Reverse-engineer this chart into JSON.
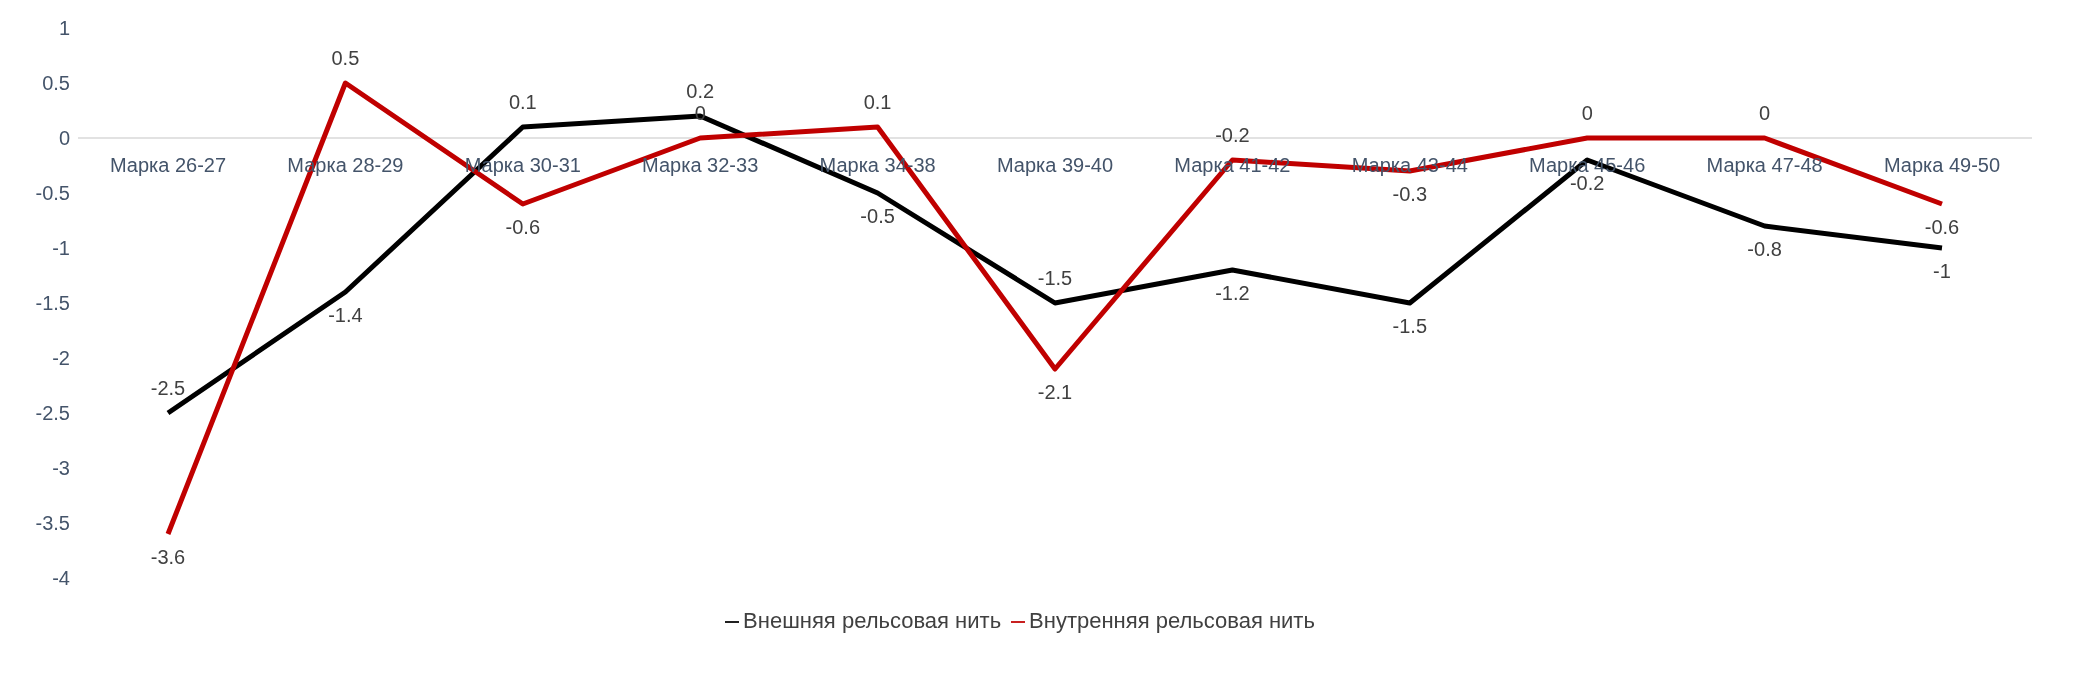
{
  "chart_data": {
    "type": "line",
    "categories": [
      "Марка 26-27",
      "Марка 28-29",
      "Марка 30-31",
      "Марка 32-33",
      "Марка 34-38",
      "Марка 39-40",
      "Марка 41-42",
      "Марка 43-44",
      "Марка 45-46",
      "Марка 47-48",
      "Марка 49-50"
    ],
    "series": [
      {
        "name": "Внешняя рельсовая нить",
        "color": "#000000",
        "values": [
          -2.5,
          -1.4,
          0.1,
          0.2,
          -0.5,
          -1.5,
          -1.2,
          -1.5,
          -0.2,
          -0.8,
          -1
        ]
      },
      {
        "name": "Внутренняя рельсовая нить",
        "color": "#c00000",
        "values": [
          -3.6,
          0.5,
          -0.6,
          0,
          0.1,
          -2.1,
          -0.2,
          -0.3,
          0,
          0,
          -0.6
        ]
      }
    ],
    "ylim": [
      -4,
      1
    ],
    "yticks": [
      -4,
      -3.5,
      -3,
      -2.5,
      -2,
      -1.5,
      -1,
      -0.5,
      0,
      0.5,
      1
    ],
    "legend": "bottom",
    "data_labels": true,
    "marker": "none",
    "line_style": "solid"
  }
}
